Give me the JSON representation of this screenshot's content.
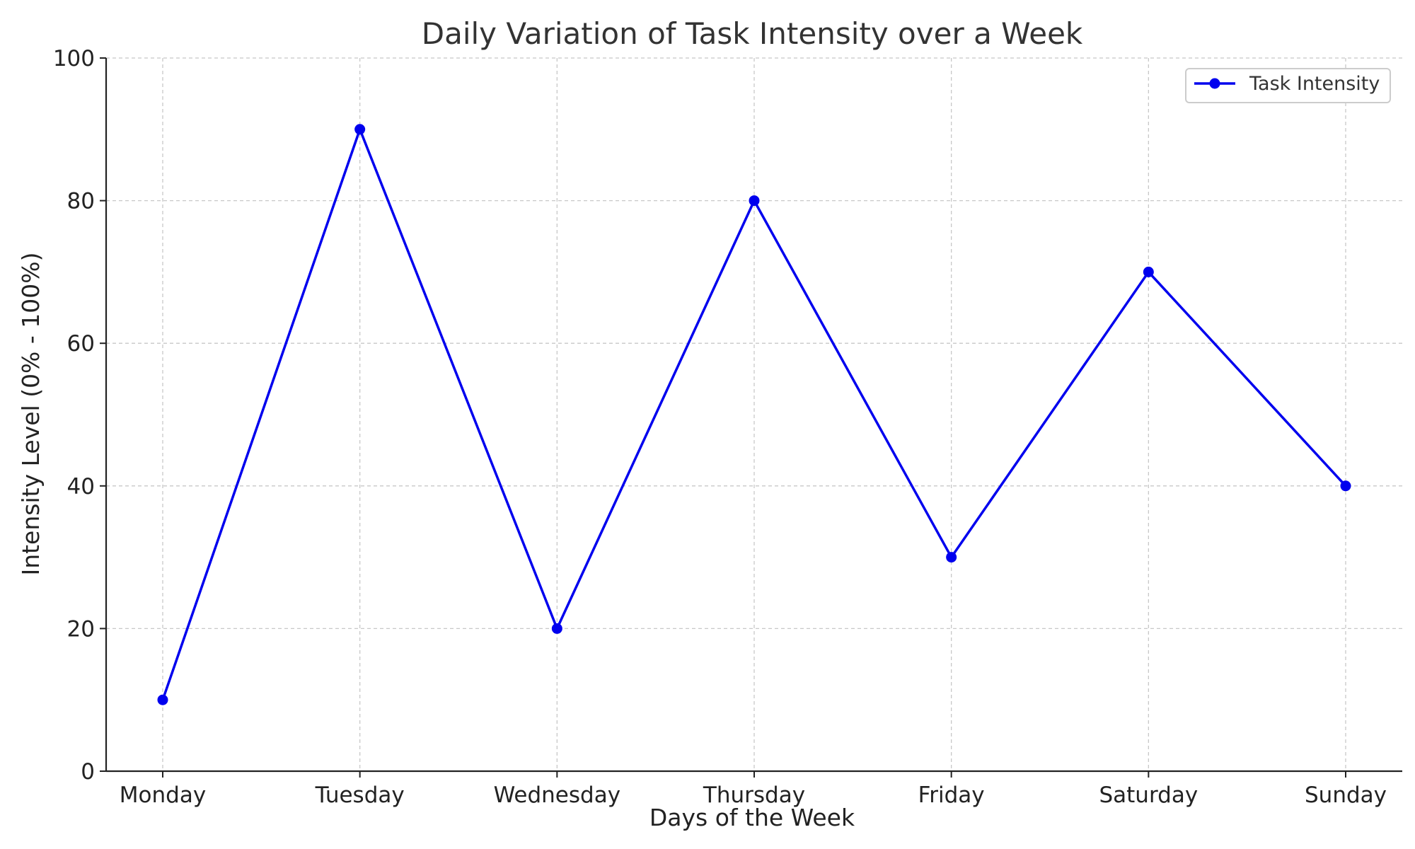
{
  "chart_data": {
    "type": "line",
    "title": "Daily Variation of Task Intensity over a Week",
    "xlabel": "Days of the Week",
    "ylabel": "Intensity Level (0% - 100%)",
    "categories": [
      "Monday",
      "Tuesday",
      "Wednesday",
      "Thursday",
      "Friday",
      "Saturday",
      "Sunday"
    ],
    "series": [
      {
        "name": "Task Intensity",
        "values": [
          10,
          90,
          20,
          80,
          30,
          70,
          40
        ],
        "color": "#0000ee",
        "marker": "circle"
      }
    ],
    "ylim": [
      0,
      100
    ],
    "yticks": [
      0,
      20,
      40,
      60,
      80,
      100
    ],
    "ytick_labels": [
      "0",
      "20",
      "40",
      "60",
      "80",
      "100"
    ],
    "grid": true,
    "legend_position": "top-right"
  }
}
